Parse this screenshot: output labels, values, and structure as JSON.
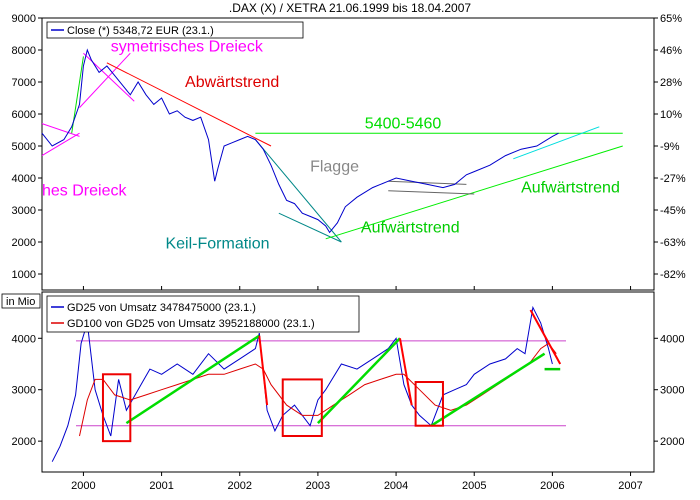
{
  "chart_data": [
    {
      "type": "line",
      "title": ".DAX (X) / XETRA 21.06.1999 bis 18.04.2007",
      "legend": {
        "label": "Close (*) 5348,72 EUR (23.1.)",
        "placement": "top-left",
        "color": "#0000cc"
      },
      "ylim": [
        500,
        9000
      ],
      "y_ticks": [
        1000,
        2000,
        3000,
        4000,
        5000,
        6000,
        7000,
        8000,
        9000
      ],
      "y_right_ticks": [
        "65%",
        "46%",
        "28%",
        "10%",
        "-9%",
        "-27%",
        "-45%",
        "-63%",
        "-82%"
      ],
      "x_ticks": [
        "2000",
        "2001",
        "2002",
        "2003",
        "2004",
        "2005",
        "2006",
        "2007"
      ],
      "x_range": [
        1999.47,
        2007.3
      ],
      "series": [
        {
          "name": "Close",
          "color": "#0000cc",
          "x": [
            1999.47,
            1999.6,
            1999.75,
            1999.85,
            1999.95,
            2000.0,
            2000.05,
            2000.1,
            2000.2,
            2000.3,
            2000.4,
            2000.5,
            2000.6,
            2000.7,
            2000.8,
            2000.9,
            2001.0,
            2001.1,
            2001.2,
            2001.3,
            2001.4,
            2001.5,
            2001.6,
            2001.68,
            2001.72,
            2001.8,
            2001.9,
            2002.0,
            2002.1,
            2002.2,
            2002.3,
            2002.4,
            2002.5,
            2002.6,
            2002.7,
            2002.8,
            2002.9,
            2003.0,
            2003.1,
            2003.15,
            2003.25,
            2003.35,
            2003.5,
            2003.7,
            2003.9,
            2004.0,
            2004.2,
            2004.4,
            2004.6,
            2004.75,
            2004.9,
            2005.0,
            2005.2,
            2005.4,
            2005.6,
            2005.8,
            2006.0,
            2006.08
          ],
          "values": [
            5400,
            5000,
            5200,
            5600,
            6300,
            7500,
            8000,
            7700,
            7300,
            7500,
            7200,
            6900,
            6600,
            7000,
            6600,
            6300,
            6500,
            6000,
            6100,
            5900,
            5800,
            5900,
            5200,
            3900,
            4300,
            5000,
            5100,
            5200,
            5300,
            5200,
            4900,
            4400,
            3800,
            3300,
            3200,
            2900,
            2800,
            2700,
            2500,
            2300,
            2600,
            3100,
            3400,
            3700,
            3900,
            4000,
            3900,
            3800,
            3700,
            3800,
            4100,
            4200,
            4400,
            4700,
            4900,
            5000,
            5300,
            5400
          ]
        }
      ],
      "trendlines": [
        {
          "name": "symetrisches-dreieck-lower",
          "color": "#ff00ff",
          "x": [
            1999.47,
            1999.95
          ],
          "values": [
            4700,
            5400
          ]
        },
        {
          "name": "symetrisches-dreieck-upper",
          "color": "#ff00ff",
          "x": [
            1999.47,
            1999.95
          ],
          "values": [
            5700,
            5300
          ]
        },
        {
          "name": "dreieck-2000-upper",
          "color": "#ff00ff",
          "x": [
            2000.0,
            2000.65
          ],
          "values": [
            7900,
            6400
          ]
        },
        {
          "name": "dreieck-2000-lower",
          "color": "#ff00ff",
          "x": [
            1999.95,
            2000.6
          ],
          "values": [
            6200,
            7900
          ]
        },
        {
          "name": "aufwaertstrend-1999",
          "color": "#00dd00",
          "x": [
            1999.85,
            2000.0
          ],
          "values": [
            5400,
            7800
          ]
        },
        {
          "name": "abwaertstrend",
          "color": "#ff0000",
          "x": [
            2000.3,
            2002.4
          ],
          "values": [
            7600,
            5000
          ]
        },
        {
          "name": "keil-upper",
          "color": "#008888",
          "x": [
            2002.2,
            2003.3
          ],
          "values": [
            5200,
            2000
          ]
        },
        {
          "name": "keil-lower",
          "color": "#008888",
          "x": [
            2002.5,
            2003.3
          ],
          "values": [
            2900,
            2000
          ]
        },
        {
          "name": "resistance-5400",
          "color": "#00ee00",
          "x": [
            2002.2,
            2006.9
          ],
          "values": [
            5400,
            5400
          ]
        },
        {
          "name": "aufwaertstrend-2003",
          "color": "#00ee00",
          "x": [
            2003.1,
            2006.9
          ],
          "values": [
            2100,
            5000
          ]
        },
        {
          "name": "flagge-upper",
          "color": "#666666",
          "x": [
            2003.9,
            2004.9
          ],
          "values": [
            3900,
            3800
          ]
        },
        {
          "name": "flagge-lower",
          "color": "#666666",
          "x": [
            2003.9,
            2005.0
          ],
          "values": [
            3600,
            3500
          ]
        },
        {
          "name": "channel-upper",
          "color": "#00dddd",
          "x": [
            2005.5,
            2006.6
          ],
          "values": [
            4600,
            5600
          ]
        }
      ],
      "annotations": [
        {
          "text": "symetrisches Dreieck",
          "color": "#ff00ff",
          "x": 2000.35,
          "y": 7950
        },
        {
          "text": "Abwärtstrend",
          "color": "#dd0000",
          "x": 2001.3,
          "y": 6850
        },
        {
          "text": "5400-5460",
          "color": "#00dd00",
          "x": 2003.6,
          "y": 5550
        },
        {
          "text": "Flagge",
          "color": "#888888",
          "x": 2002.9,
          "y": 4200
        },
        {
          "text": "hes Dreieck",
          "color": "#ff00ff",
          "x": 1999.47,
          "y": 3450
        },
        {
          "text": "Aufwärtstrend",
          "color": "#00cc00",
          "x": 2005.6,
          "y": 3550
        },
        {
          "text": "Aufwärtstrend",
          "color": "#00cc00",
          "x": 2003.55,
          "y": 2300
        },
        {
          "text": "Keil-Formation",
          "color": "#008888",
          "x": 2001.05,
          "y": 1800
        }
      ]
    },
    {
      "type": "line",
      "title": "",
      "y_unit_label": "in Mio",
      "ylim": [
        1400,
        4900
      ],
      "y_ticks": [
        2000,
        3000,
        4000
      ],
      "y_right_ticks": [
        "2000",
        "3000",
        "4000"
      ],
      "x_ticks": [
        "2000",
        "2001",
        "2002",
        "2003",
        "2004",
        "2005",
        "2006",
        "2007"
      ],
      "legend": [
        {
          "label": "GD25 von Umsatz 3478475000 (23.1.)",
          "color": "#0000cc"
        },
        {
          "label": "GD100 von GD25 von Umsatz 3952188000 (23.1.)",
          "color": "#dd0000"
        }
      ],
      "series": [
        {
          "name": "GD25",
          "color": "#0000cc",
          "x": [
            1999.6,
            1999.7,
            1999.8,
            1999.9,
            1999.97,
            2000.05,
            2000.15,
            2000.25,
            2000.35,
            2000.45,
            2000.55,
            2000.7,
            2000.85,
            2001.0,
            2001.2,
            2001.4,
            2001.6,
            2001.8,
            2002.0,
            2002.2,
            2002.25,
            2002.35,
            2002.45,
            2002.55,
            2002.7,
            2002.9,
            2003.0,
            2003.1,
            2003.3,
            2003.5,
            2003.7,
            2003.9,
            2004.0,
            2004.1,
            2004.2,
            2004.3,
            2004.45,
            2004.6,
            2004.75,
            2004.9,
            2005.0,
            2005.2,
            2005.4,
            2005.55,
            2005.65,
            2005.75,
            2005.85,
            2005.95,
            2006.0
          ],
          "values": [
            1600,
            1900,
            2300,
            2900,
            3900,
            4300,
            3000,
            2500,
            2100,
            3200,
            2600,
            3000,
            3400,
            3300,
            3500,
            3300,
            3700,
            3400,
            3600,
            3800,
            4100,
            2600,
            2200,
            2500,
            2700,
            2300,
            2800,
            3000,
            3500,
            3400,
            3600,
            3800,
            4000,
            3100,
            2700,
            2500,
            2300,
            2900,
            3000,
            3100,
            3300,
            3500,
            3600,
            3800,
            3700,
            4600,
            4300,
            3800,
            3500
          ]
        },
        {
          "name": "GD100",
          "color": "#dd0000",
          "x": [
            1999.95,
            2000.05,
            2000.15,
            2000.25,
            2000.4,
            2000.6,
            2000.8,
            2001.0,
            2001.2,
            2001.4,
            2001.6,
            2001.8,
            2002.0,
            2002.2,
            2002.3,
            2002.4,
            2002.6,
            2002.8,
            2003.0,
            2003.2,
            2003.4,
            2003.6,
            2003.8,
            2004.0,
            2004.1,
            2004.3,
            2004.5,
            2004.7,
            2004.9,
            2005.1,
            2005.3,
            2005.5,
            2005.7,
            2005.85,
            2005.95,
            2006.05
          ],
          "values": [
            2100,
            2800,
            3200,
            3200,
            2900,
            2800,
            2900,
            3000,
            3100,
            3200,
            3300,
            3300,
            3400,
            3500,
            3400,
            3100,
            2700,
            2500,
            2500,
            2700,
            2900,
            3100,
            3200,
            3300,
            3300,
            3000,
            2700,
            2600,
            2700,
            2900,
            3100,
            3300,
            3500,
            3800,
            3900,
            3700
          ]
        }
      ],
      "horizontal_lines": [
        {
          "name": "upper-band",
          "color": "#cc44cc",
          "value": 3950
        },
        {
          "name": "lower-band",
          "color": "#cc44cc",
          "value": 2300
        }
      ],
      "trendlines": [
        {
          "name": "rise-2000",
          "color": "#00dd00",
          "x": [
            2000.55,
            2002.25
          ],
          "values": [
            2350,
            4050
          ]
        },
        {
          "name": "rise-2003",
          "color": "#00dd00",
          "x": [
            2003.0,
            2004.05
          ],
          "values": [
            2350,
            4000
          ]
        },
        {
          "name": "rise-2004",
          "color": "#00dd00",
          "x": [
            2004.45,
            2005.9
          ],
          "values": [
            2300,
            3700
          ]
        },
        {
          "name": "drop-2002",
          "color": "#ff0000",
          "x": [
            2002.25,
            2002.35
          ],
          "values": [
            4050,
            2700
          ]
        },
        {
          "name": "drop-2004",
          "color": "#ff0000",
          "x": [
            2004.05,
            2004.2
          ],
          "values": [
            4000,
            2700
          ]
        },
        {
          "name": "drop-2005",
          "color": "#ff0000",
          "x": [
            2005.72,
            2006.1
          ],
          "values": [
            4550,
            3500
          ]
        },
        {
          "name": "support-2006",
          "color": "#00cc00",
          "x": [
            2005.9,
            2006.1
          ],
          "values": [
            3400,
            3400
          ]
        }
      ],
      "boxes": [
        {
          "name": "box-2000",
          "x": [
            2000.25,
            2000.6
          ],
          "values": [
            2000,
            3300
          ]
        },
        {
          "name": "box-2002",
          "x": [
            2002.55,
            2003.05
          ],
          "values": [
            2100,
            3200
          ]
        },
        {
          "name": "box-2004",
          "x": [
            2004.25,
            2004.6
          ],
          "values": [
            2300,
            3150
          ]
        }
      ]
    }
  ]
}
